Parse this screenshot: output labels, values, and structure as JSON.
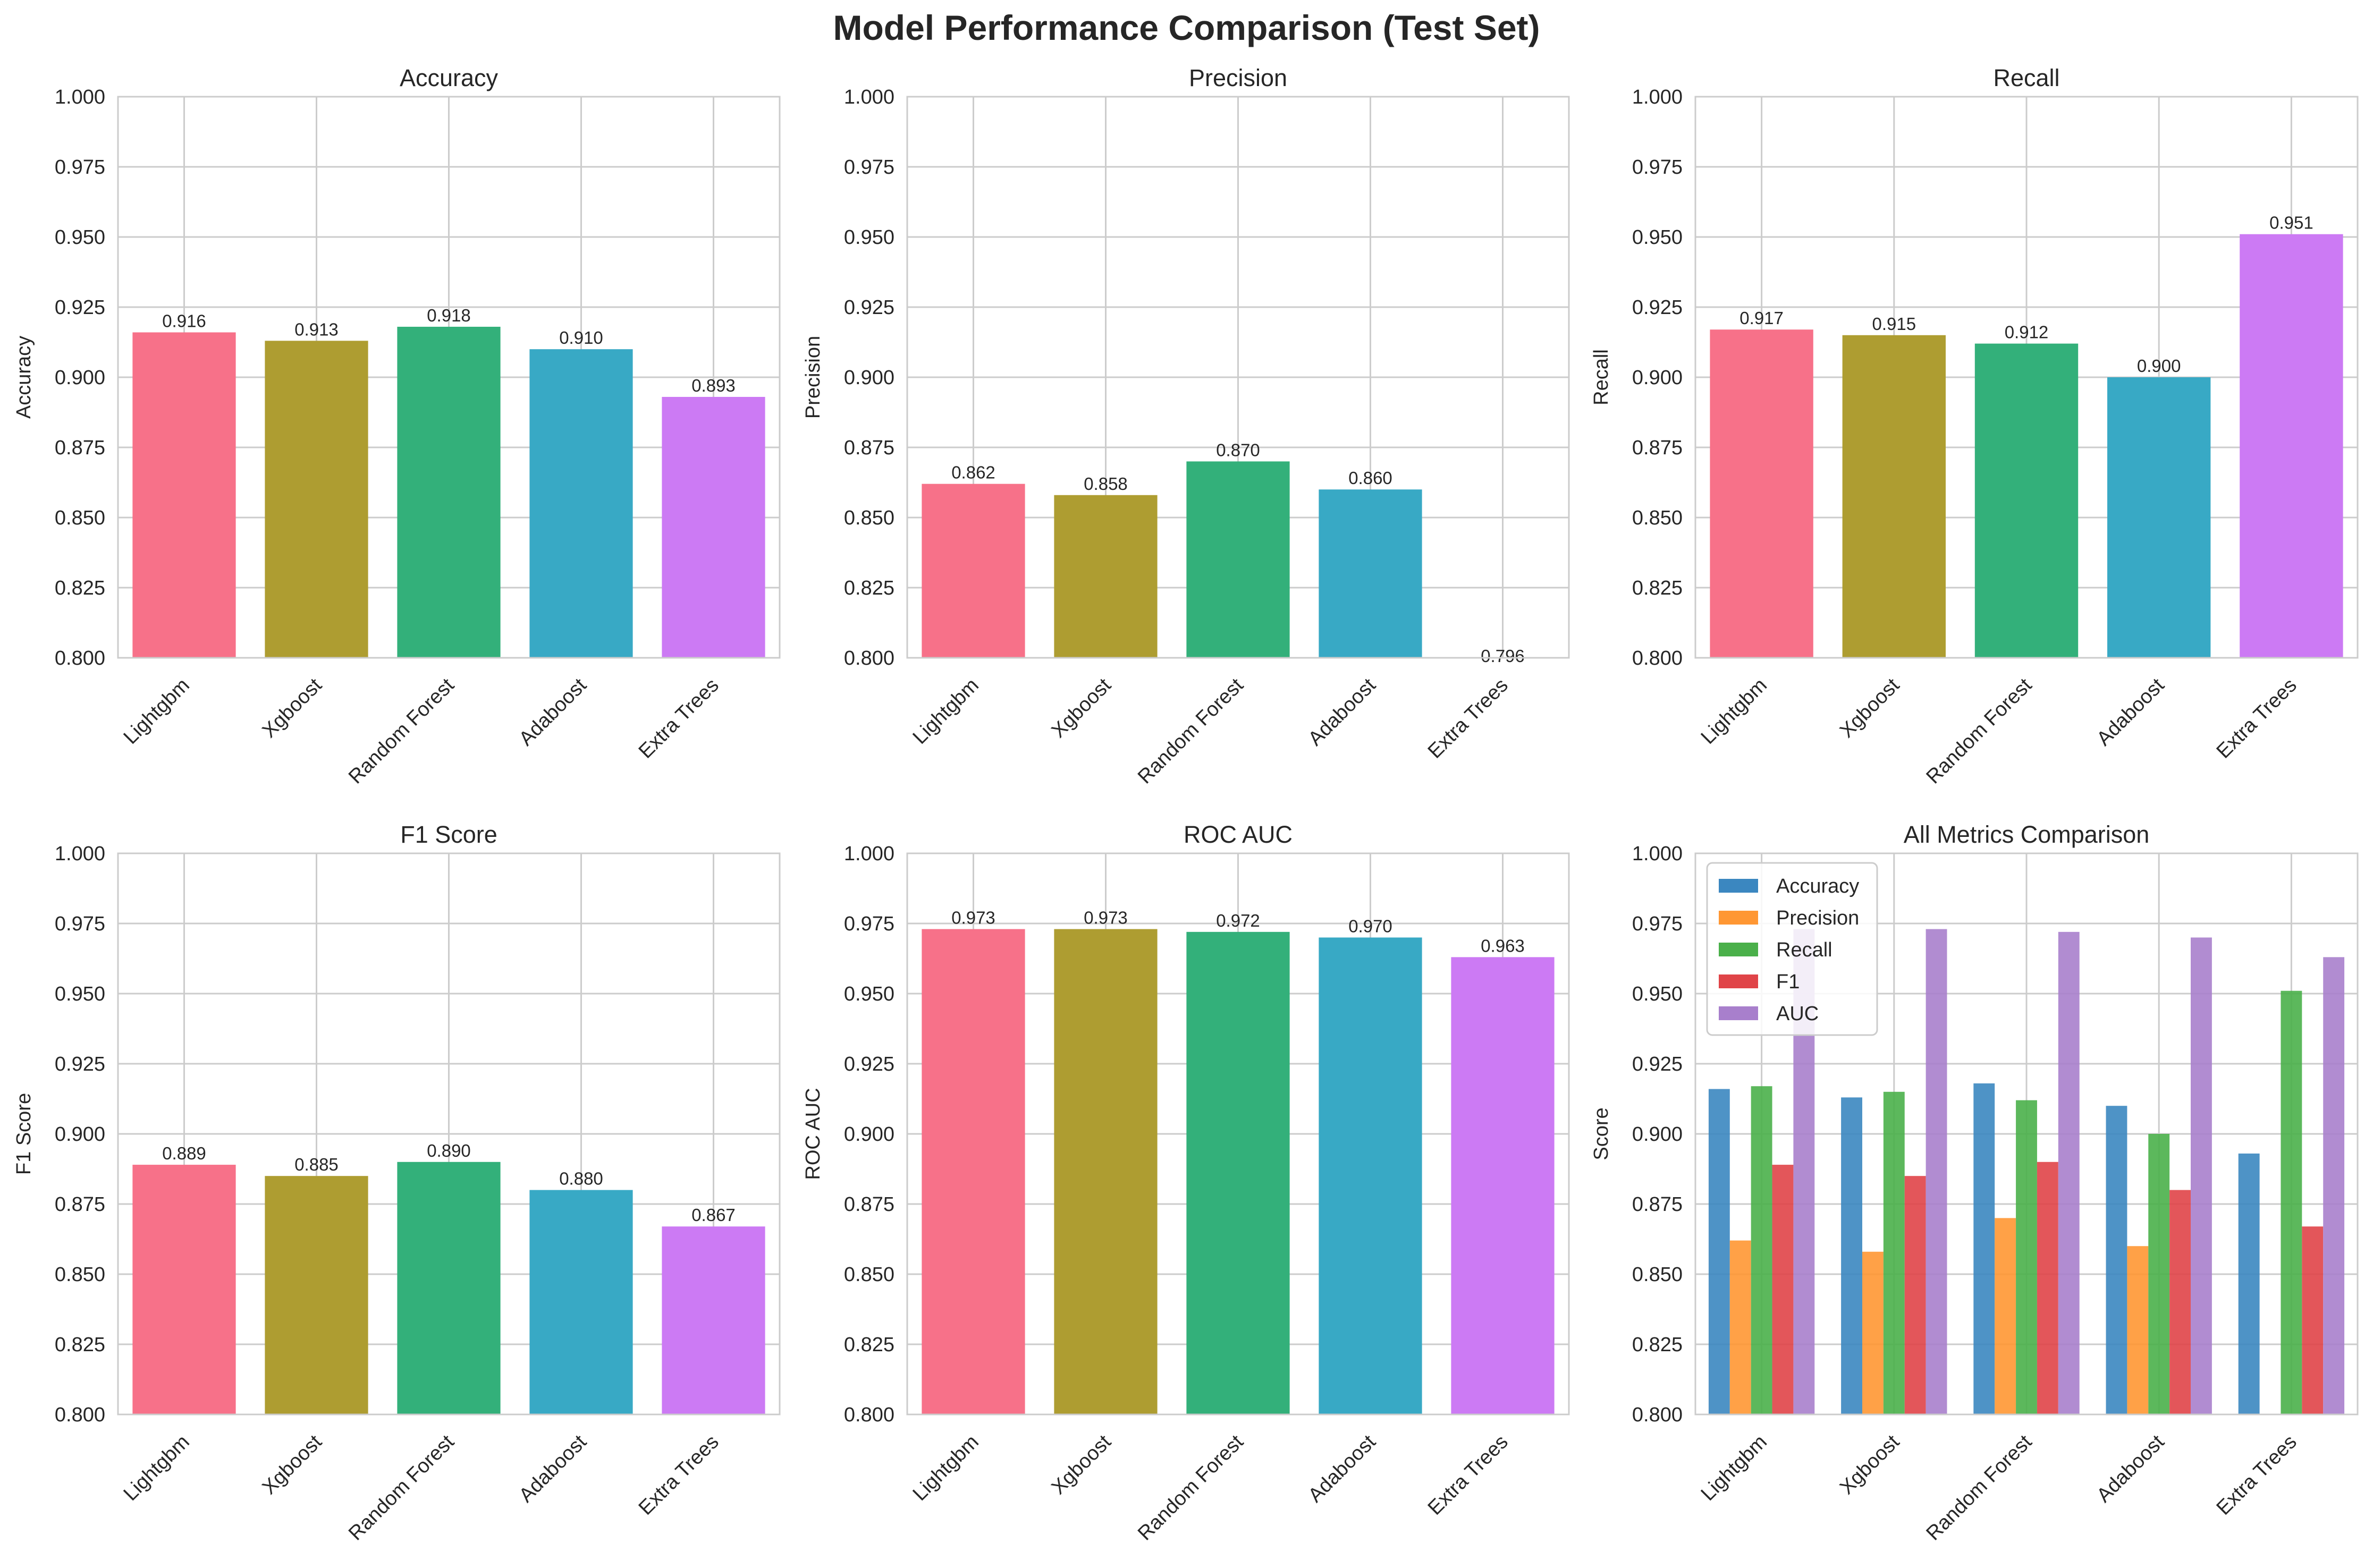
{
  "title": "Model Performance Comparison (Test Set)",
  "chart_data": [
    {
      "type": "bar",
      "title": "Accuracy",
      "ylabel": "Accuracy",
      "categories": [
        "Lightgbm",
        "Xgboost",
        "Random Forest",
        "Adaboost",
        "Extra Trees"
      ],
      "values": [
        0.916,
        0.913,
        0.918,
        0.91,
        0.893
      ],
      "value_labels": [
        "0.916",
        "0.913",
        "0.918",
        "0.910",
        "0.893"
      ],
      "ylim": [
        0.8,
        1.0
      ],
      "yticks": [
        "0.800",
        "0.825",
        "0.850",
        "0.875",
        "0.900",
        "0.925",
        "0.950",
        "0.975",
        "1.000"
      ],
      "grid": true
    },
    {
      "type": "bar",
      "title": "Precision",
      "ylabel": "Precision",
      "categories": [
        "Lightgbm",
        "Xgboost",
        "Random Forest",
        "Adaboost",
        "Extra Trees"
      ],
      "values": [
        0.862,
        0.858,
        0.87,
        0.86,
        0.796
      ],
      "value_labels": [
        "0.862",
        "0.858",
        "0.870",
        "0.860",
        "0.796"
      ],
      "ylim": [
        0.8,
        1.0
      ],
      "yticks": [
        "0.800",
        "0.825",
        "0.850",
        "0.875",
        "0.900",
        "0.925",
        "0.950",
        "0.975",
        "1.000"
      ],
      "grid": true
    },
    {
      "type": "bar",
      "title": "Recall",
      "ylabel": "Recall",
      "categories": [
        "Lightgbm",
        "Xgboost",
        "Random Forest",
        "Adaboost",
        "Extra Trees"
      ],
      "values": [
        0.917,
        0.915,
        0.912,
        0.9,
        0.951
      ],
      "value_labels": [
        "0.917",
        "0.915",
        "0.912",
        "0.900",
        "0.951"
      ],
      "ylim": [
        0.8,
        1.0
      ],
      "yticks": [
        "0.800",
        "0.825",
        "0.850",
        "0.875",
        "0.900",
        "0.925",
        "0.950",
        "0.975",
        "1.000"
      ],
      "grid": true
    },
    {
      "type": "bar",
      "title": "F1 Score",
      "ylabel": "F1 Score",
      "categories": [
        "Lightgbm",
        "Xgboost",
        "Random Forest",
        "Adaboost",
        "Extra Trees"
      ],
      "values": [
        0.889,
        0.885,
        0.89,
        0.88,
        0.867
      ],
      "value_labels": [
        "0.889",
        "0.885",
        "0.890",
        "0.880",
        "0.867"
      ],
      "ylim": [
        0.8,
        1.0
      ],
      "yticks": [
        "0.800",
        "0.825",
        "0.850",
        "0.875",
        "0.900",
        "0.925",
        "0.950",
        "0.975",
        "1.000"
      ],
      "grid": true
    },
    {
      "type": "bar",
      "title": "ROC AUC",
      "ylabel": "ROC AUC",
      "categories": [
        "Lightgbm",
        "Xgboost",
        "Random Forest",
        "Adaboost",
        "Extra Trees"
      ],
      "values": [
        0.973,
        0.973,
        0.972,
        0.97,
        0.963
      ],
      "value_labels": [
        "0.973",
        "0.973",
        "0.972",
        "0.970",
        "0.963"
      ],
      "ylim": [
        0.8,
        1.0
      ],
      "yticks": [
        "0.800",
        "0.825",
        "0.850",
        "0.875",
        "0.900",
        "0.925",
        "0.950",
        "0.975",
        "1.000"
      ],
      "grid": true
    },
    {
      "type": "bar",
      "title": "All Metrics Comparison",
      "ylabel": "Score",
      "categories": [
        "Lightgbm",
        "Xgboost",
        "Random Forest",
        "Adaboost",
        "Extra Trees"
      ],
      "series": [
        {
          "name": "Accuracy",
          "values": [
            0.916,
            0.913,
            0.918,
            0.91,
            0.893
          ]
        },
        {
          "name": "Precision",
          "values": [
            0.862,
            0.858,
            0.87,
            0.86,
            0.796
          ]
        },
        {
          "name": "Recall",
          "values": [
            0.917,
            0.915,
            0.912,
            0.9,
            0.951
          ]
        },
        {
          "name": "F1",
          "values": [
            0.889,
            0.885,
            0.89,
            0.88,
            0.867
          ]
        },
        {
          "name": "AUC",
          "values": [
            0.973,
            0.973,
            0.972,
            0.97,
            0.963
          ]
        }
      ],
      "ylim": [
        0.8,
        1.0
      ],
      "yticks": [
        "0.800",
        "0.825",
        "0.850",
        "0.875",
        "0.900",
        "0.925",
        "0.950",
        "0.975",
        "1.000"
      ],
      "grid": true,
      "legend_position": "upper-left"
    }
  ],
  "colors": {
    "models": [
      "#f77189",
      "#ae9d31",
      "#33b07a",
      "#38a9c5",
      "#cc7af4"
    ],
    "metrics": [
      "#3b87c0",
      "#ff9733",
      "#4ab04a",
      "#e04448",
      "#a87fcc"
    ],
    "grid": "#cccccc",
    "axes": "#cccccc",
    "text": "#262626"
  }
}
